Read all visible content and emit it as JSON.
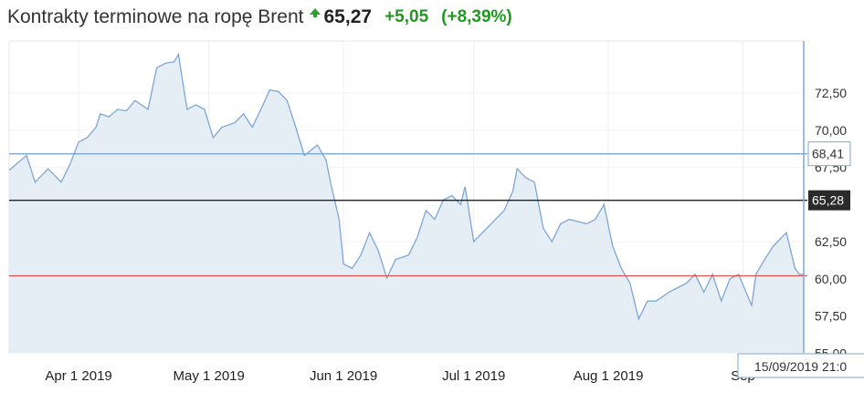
{
  "header": {
    "title": "Kontrakty terminowe na ropę Brent",
    "price": "65,27",
    "change": "+5,05",
    "change_pct": "(+8,39%)",
    "trend_icon": "up-arrow-icon"
  },
  "colors": {
    "line": "#7ea6d3",
    "fill": "#e6eef5",
    "red_line": "#d9534f",
    "black_line": "#222222",
    "blue_line": "#7ea6d3",
    "up": "#1f9a1f"
  },
  "chart_data": {
    "type": "area",
    "title": "Kontrakty terminowe na ropę Brent",
    "x_unit": "days since 16 Mar 2019",
    "xlim": [
      0,
      183
    ],
    "ylim": [
      55,
      75.5
    ],
    "grid": true,
    "yticks": [
      55,
      57.5,
      60,
      62.5,
      67.5,
      70,
      72.5
    ],
    "ytick_labels": [
      "55,00",
      "57,50",
      "60,00",
      "62,50",
      "67,50",
      "70,00",
      "72,50"
    ],
    "xticks": [
      {
        "day": 16,
        "label": "Apr 1 2019"
      },
      {
        "day": 46,
        "label": "May 1 2019"
      },
      {
        "day": 77,
        "label": "Jun 1 2019"
      },
      {
        "day": 107,
        "label": "Jul 1 2019"
      },
      {
        "day": 138,
        "label": "Aug 1 2019"
      },
      {
        "day": 169,
        "label": "Sep"
      }
    ],
    "points": [
      [
        0,
        67.3
      ],
      [
        4,
        68.3
      ],
      [
        6,
        66.5
      ],
      [
        9,
        67.4
      ],
      [
        12,
        66.5
      ],
      [
        14,
        67.7
      ],
      [
        16,
        69.2
      ],
      [
        18,
        69.5
      ],
      [
        20,
        70.2
      ],
      [
        21,
        71.1
      ],
      [
        23,
        70.9
      ],
      [
        25,
        71.4
      ],
      [
        27,
        71.3
      ],
      [
        29,
        72.0
      ],
      [
        32,
        71.4
      ],
      [
        34,
        74.2
      ],
      [
        36,
        74.5
      ],
      [
        38,
        74.6
      ],
      [
        39,
        75.1
      ],
      [
        40,
        73.2
      ],
      [
        41,
        71.4
      ],
      [
        43,
        71.7
      ],
      [
        45,
        71.4
      ],
      [
        47,
        69.5
      ],
      [
        49,
        70.2
      ],
      [
        52,
        70.5
      ],
      [
        54,
        71.1
      ],
      [
        56,
        70.2
      ],
      [
        58,
        71.4
      ],
      [
        60,
        72.7
      ],
      [
        62,
        72.6
      ],
      [
        64,
        72.0
      ],
      [
        66,
        70.2
      ],
      [
        68,
        68.3
      ],
      [
        71,
        69.0
      ],
      [
        73,
        68.0
      ],
      [
        74,
        66.5
      ],
      [
        76,
        64.0
      ],
      [
        77,
        61.0
      ],
      [
        79,
        60.7
      ],
      [
        81,
        61.6
      ],
      [
        83,
        63.1
      ],
      [
        85,
        61.9
      ],
      [
        87,
        60.05
      ],
      [
        89,
        61.3
      ],
      [
        92,
        61.6
      ],
      [
        94,
        62.8
      ],
      [
        96,
        64.6
      ],
      [
        98,
        64.0
      ],
      [
        100,
        65.3
      ],
      [
        102,
        65.6
      ],
      [
        104,
        65.0
      ],
      [
        105,
        66.2
      ],
      [
        107,
        62.5
      ],
      [
        109,
        63.1
      ],
      [
        112,
        64.0
      ],
      [
        114,
        64.6
      ],
      [
        116,
        65.9
      ],
      [
        117,
        67.4
      ],
      [
        119,
        66.8
      ],
      [
        121,
        66.5
      ],
      [
        123,
        63.4
      ],
      [
        125,
        62.5
      ],
      [
        127,
        63.7
      ],
      [
        129,
        64.0
      ],
      [
        133,
        63.7
      ],
      [
        135,
        64.0
      ],
      [
        137,
        65.0
      ],
      [
        139,
        62.2
      ],
      [
        141,
        60.7
      ],
      [
        143,
        59.7
      ],
      [
        145,
        57.3
      ],
      [
        147,
        58.5
      ],
      [
        149,
        58.5
      ],
      [
        152,
        59.1
      ],
      [
        154,
        59.4
      ],
      [
        156,
        59.7
      ],
      [
        158,
        60.3
      ],
      [
        160,
        59.1
      ],
      [
        162,
        60.3
      ],
      [
        164,
        58.5
      ],
      [
        166,
        60.0
      ],
      [
        168,
        60.3
      ],
      [
        171,
        58.2
      ],
      [
        172,
        60.3
      ],
      [
        174,
        61.3
      ],
      [
        176,
        62.2
      ],
      [
        178,
        62.8
      ],
      [
        179,
        63.1
      ],
      [
        181,
        60.7
      ],
      [
        182,
        60.3
      ],
      [
        183,
        60.3
      ]
    ],
    "reference_lines": [
      {
        "value": 68.41,
        "label": "68,41",
        "style": "blue"
      },
      {
        "value": 65.28,
        "label": "65,28",
        "style": "black"
      },
      {
        "value": 60.2,
        "label": "",
        "style": "red"
      }
    ],
    "crosshair_label": "15/09/2019 21:0"
  }
}
